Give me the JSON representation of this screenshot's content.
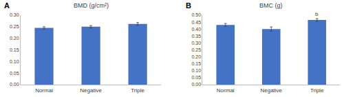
{
  "chart_data": [
    {
      "type": "bar",
      "panel": "A",
      "title": "BMD (g/cm²)",
      "categories": [
        "Normal",
        "Negative",
        "Triple"
      ],
      "values": [
        0.245,
        0.25,
        0.262
      ],
      "errors": [
        0.005,
        0.005,
        0.006
      ],
      "color": "#4472c4",
      "ylim": [
        0,
        0.3
      ],
      "yticks": [
        {
          "value": 0,
          "label": "0.00"
        },
        {
          "value": 0.05,
          "label": "0.05"
        },
        {
          "value": 0.1,
          "label": "0.10"
        },
        {
          "value": 0.15,
          "label": "0.15"
        },
        {
          "value": 0.2,
          "label": "0.20"
        },
        {
          "value": 0.25,
          "label": "0.25"
        },
        {
          "value": 0.3,
          "label": "0.30"
        }
      ],
      "grid": false
    },
    {
      "type": "bar",
      "panel": "B",
      "title": "BMC (g)",
      "categories": [
        "Normal",
        "Negative",
        "Triple"
      ],
      "values": [
        0.43,
        0.4,
        0.465
      ],
      "errors": [
        0.01,
        0.015,
        0.01
      ],
      "color": "#4472c4",
      "ylim": [
        0,
        0.5
      ],
      "yticks": [
        {
          "value": 0,
          "label": "0.00"
        },
        {
          "value": 0.05,
          "label": "0.05"
        },
        {
          "value": 0.1,
          "label": "0.10"
        },
        {
          "value": 0.15,
          "label": "0.15"
        },
        {
          "value": 0.2,
          "label": "0.20"
        },
        {
          "value": 0.25,
          "label": "0.25"
        },
        {
          "value": 0.3,
          "label": "0.30"
        },
        {
          "value": 0.35,
          "label": "0.35"
        },
        {
          "value": 0.4,
          "label": "0.40"
        },
        {
          "value": 0.45,
          "label": "0.45"
        },
        {
          "value": 0.5,
          "label": "0.50"
        }
      ],
      "grid": false,
      "annotations": [
        {
          "category": "Triple",
          "text": "b"
        }
      ]
    }
  ]
}
